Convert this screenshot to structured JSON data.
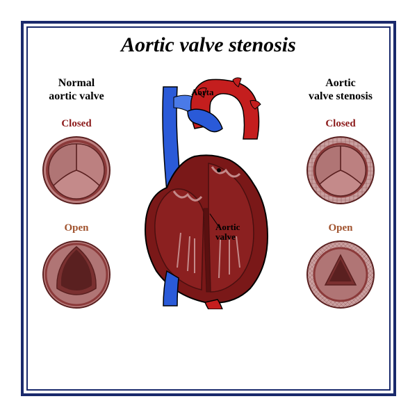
{
  "title": "Aortic valve stenosis",
  "left": {
    "title": "Normal\naortic valve",
    "closed": "Closed",
    "open": "Open"
  },
  "right": {
    "title": "Aortic\nvalve stenosis",
    "closed": "Closed",
    "open": "Open"
  },
  "annotations": {
    "aorta": "Aorta",
    "valve": "Aortic\nvalve"
  },
  "colors": {
    "border": "#1a2a6c",
    "valve_ring": "#8b3a3a",
    "valve_fill_normal": "#bc8080",
    "valve_fill_stenosis": "#c9a0a0",
    "valve_line": "#5a2020",
    "valve_open_dark": "#7a3030",
    "heart_dark": "#7a1818",
    "heart_red": "#c41e1e",
    "heart_blue": "#2a5ad8",
    "heart_blue_light": "#4a7ae8",
    "heart_outline": "#000",
    "stenosis_texture": "#9a6060"
  },
  "valve_diagrams": {
    "normal_closed": {
      "type": "tricuspid-closed",
      "textured": false
    },
    "normal_open": {
      "type": "tricuspid-open",
      "textured": false
    },
    "stenosis_closed": {
      "type": "tricuspid-closed",
      "textured": true
    },
    "stenosis_open": {
      "type": "tricuspid-open-narrow",
      "textured": true
    }
  }
}
